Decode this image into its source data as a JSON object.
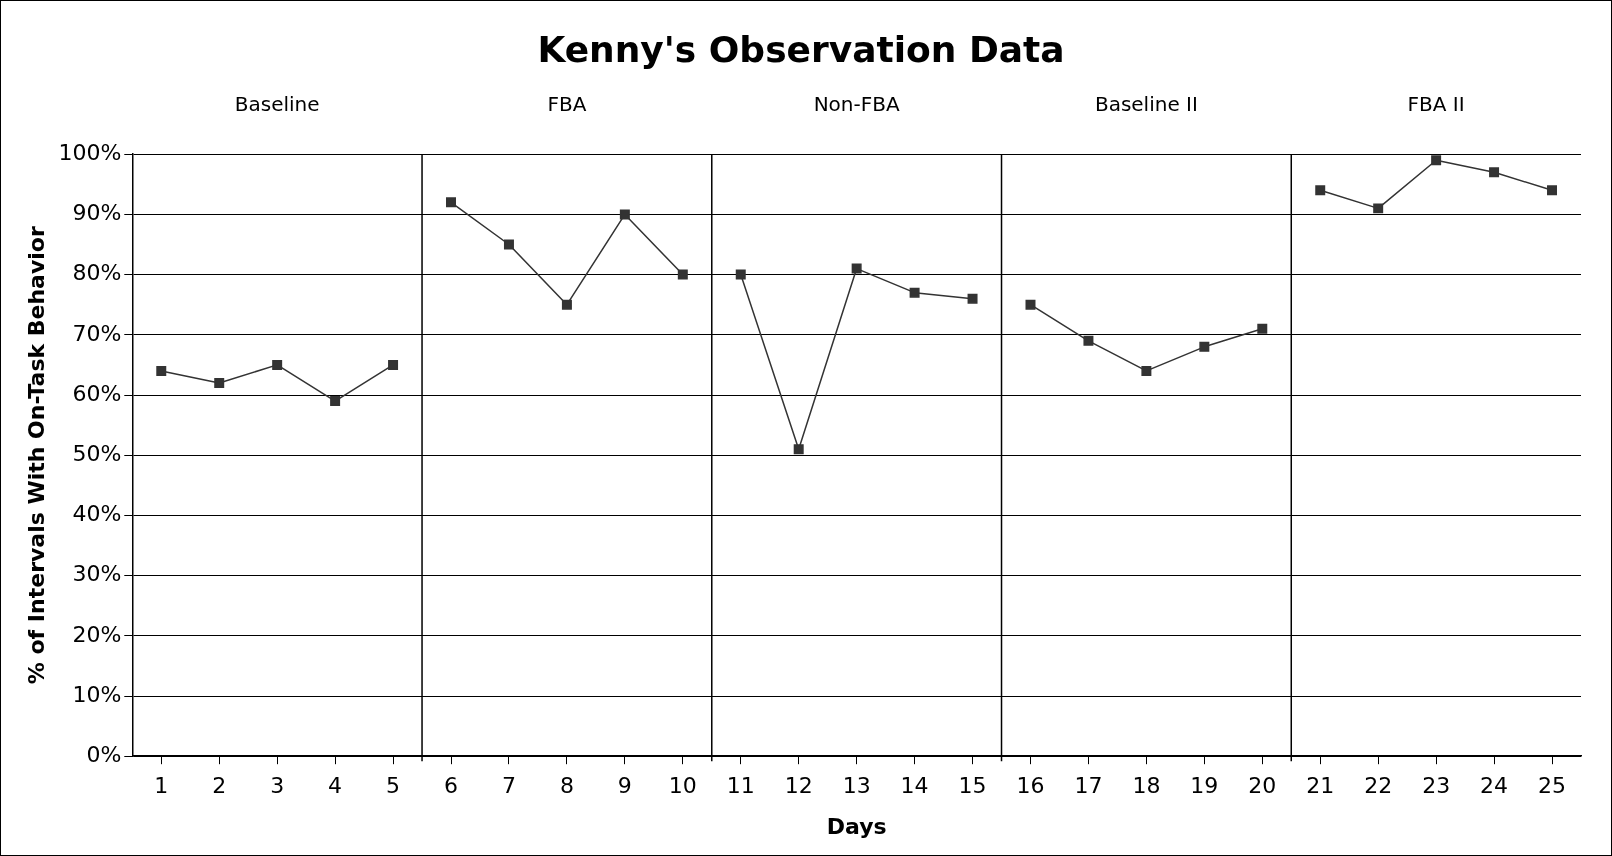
{
  "chart_data": {
    "type": "line",
    "title": "Kenny's Observation Data",
    "xlabel": "Days",
    "ylabel": "% of Intervals With On-Task Behavior",
    "series": [
      {
        "color": "#333333",
        "x": [
          1,
          2,
          3,
          4,
          5
        ],
        "values": [
          64,
          62,
          65,
          59,
          65
        ]
      },
      {
        "color": "#333333",
        "x": [
          6,
          7,
          8,
          9,
          10
        ],
        "values": [
          92,
          85,
          75,
          90,
          80
        ]
      },
      {
        "color": "#333333",
        "x": [
          11,
          12,
          13,
          14,
          15
        ],
        "values": [
          80,
          51,
          81,
          77,
          76
        ]
      },
      {
        "color": "#333333",
        "x": [
          16,
          17,
          18,
          19,
          20
        ],
        "values": [
          75,
          69,
          64,
          68,
          71
        ]
      },
      {
        "color": "#333333",
        "x": [
          21,
          22,
          23,
          24,
          25
        ],
        "values": [
          94,
          91,
          99,
          97,
          94
        ]
      }
    ],
    "xlim": [
      0.5,
      25.5
    ],
    "xticks": [
      1,
      2,
      3,
      4,
      5,
      6,
      7,
      8,
      9,
      10,
      11,
      12,
      13,
      14,
      15,
      16,
      17,
      18,
      19,
      20,
      21,
      22,
      23,
      24,
      25
    ],
    "ylim": [
      0,
      100
    ],
    "yticks": [
      {
        "value": 0,
        "label": "0%"
      },
      {
        "value": 10,
        "label": "10%"
      },
      {
        "value": 20,
        "label": "20%"
      },
      {
        "value": 30,
        "label": "30%"
      },
      {
        "value": 40,
        "label": "40%"
      },
      {
        "value": 50,
        "label": "50%"
      },
      {
        "value": 60,
        "label": "60%"
      },
      {
        "value": 70,
        "label": "70%"
      },
      {
        "value": 80,
        "label": "80%"
      },
      {
        "value": 90,
        "label": "90%"
      },
      {
        "value": 100,
        "label": "100%"
      }
    ],
    "ref_lines": [
      {
        "axis": "x",
        "value": 5.5,
        "color": "#000000"
      },
      {
        "axis": "x",
        "value": 10.5,
        "color": "#000000"
      },
      {
        "axis": "x",
        "value": 15.5,
        "color": "#000000"
      },
      {
        "axis": "x",
        "value": 20.5,
        "color": "#000000"
      }
    ],
    "annotations": [
      "Baseline",
      "FBA",
      "Non-FBA",
      "Baseline II",
      "FBA II"
    ],
    "grid": "y",
    "marker": "square",
    "line_style": "solid",
    "legend": false
  }
}
